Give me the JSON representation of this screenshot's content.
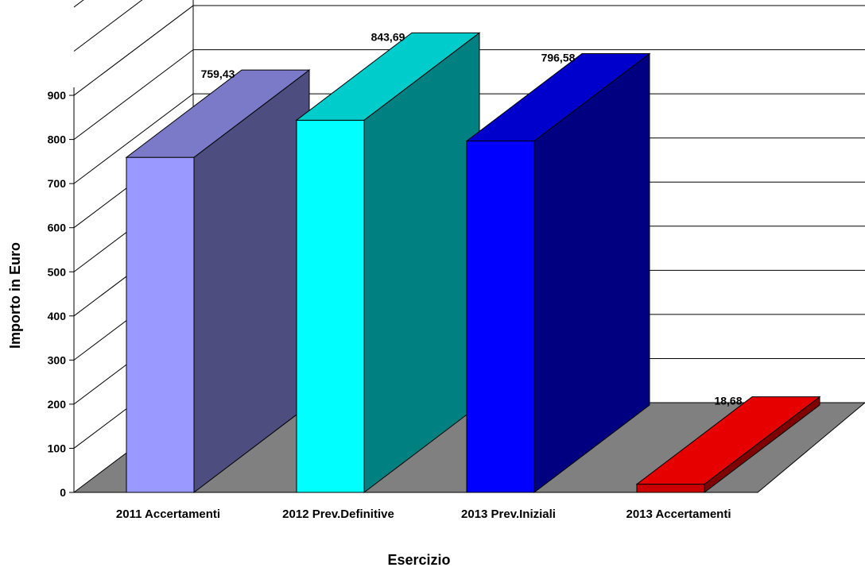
{
  "chart_data": {
    "type": "bar",
    "three_d": true,
    "categories": [
      "2011 Accertamenti",
      "2012 Prev.Definitive",
      "2013 Prev.Iniziali",
      "2013 Accertamenti"
    ],
    "values": [
      759.43,
      843.69,
      796.58,
      18.68
    ],
    "value_labels": [
      "759,43",
      "843,69",
      "796,58",
      "18,68"
    ],
    "colors": {
      "front": [
        "#9999FF",
        "#00FFFF",
        "#0000FF",
        "#CC0000"
      ],
      "side": [
        "#4D4D80",
        "#008080",
        "#000080",
        "#800000"
      ],
      "top": [
        "#7A7AC8",
        "#00CCCC",
        "#0000CC",
        "#E60000"
      ],
      "floor": "#808080",
      "grid": "#000000"
    },
    "title": "",
    "xlabel": "Esercizio",
    "ylabel": "Importo in Euro",
    "ylim": [
      0,
      900
    ],
    "yticks": [
      0,
      100,
      200,
      300,
      400,
      500,
      600,
      700,
      800,
      900
    ],
    "grid": true,
    "legend": "none"
  }
}
